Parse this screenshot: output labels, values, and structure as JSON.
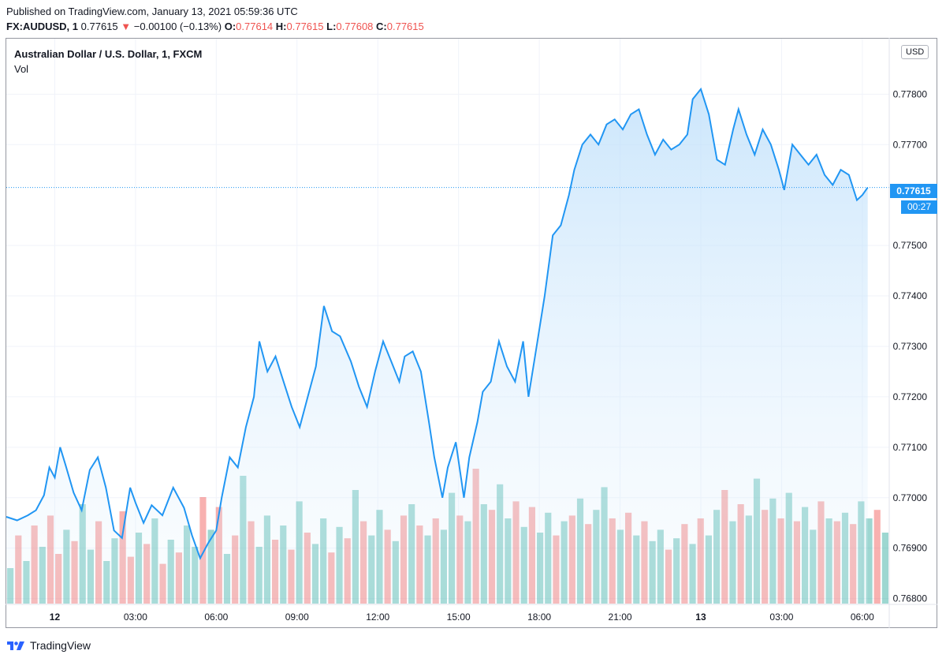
{
  "header": {
    "published": "Published on TradingView.com, January 13, 2021 05:59:36 UTC",
    "symbol": "FX:AUDUSD, 1",
    "last": "0.77615",
    "change_arrow": "▼",
    "change": "−0.00100 (−0.13%)",
    "open_label": "O:",
    "open": "0.77614",
    "high_label": "H:",
    "high": "0.77615",
    "low_label": "L:",
    "low": "0.77608",
    "close_label": "C:",
    "close": "0.77615"
  },
  "legend": {
    "title": "Australian Dollar / U.S. Dollar, 1, FXCM",
    "volume": "Vol"
  },
  "scale": {
    "currency_button": "USD",
    "price_tag": "0.77615",
    "time_tag": "00:27"
  },
  "footer": {
    "brand": "TradingView",
    "logo_icon": "tradingview-logo-icon"
  },
  "colors": {
    "line": "#2196f3",
    "area_top": "#bbdefb",
    "up_volume": "#26a69a",
    "down_volume": "#ef5350",
    "down_change": "#ef5350"
  },
  "chart_data": {
    "type": "area",
    "title": "Australian Dollar / U.S. Dollar, 1, FXCM",
    "series_name": "FX:AUDUSD",
    "xlabel": "",
    "ylabel": "",
    "x_ticks": [
      "12",
      "03:00",
      "06:00",
      "09:00",
      "12:00",
      "15:00",
      "18:00",
      "21:00",
      "13",
      "03:00",
      "06:00"
    ],
    "x_tick_hours": [
      0,
      3,
      6,
      9,
      12,
      15,
      18,
      21,
      24,
      27,
      30
    ],
    "y_ticks": [
      "0.77800",
      "0.77700",
      "0.77500",
      "0.77400",
      "0.77300",
      "0.77200",
      "0.77100",
      "0.77000",
      "0.76900",
      "0.76800"
    ],
    "y_tick_values": [
      0.778,
      0.777,
      0.775,
      0.774,
      0.773,
      0.772,
      0.771,
      0.77,
      0.769,
      0.768
    ],
    "ylim": [
      0.7679,
      0.7791
    ],
    "xlim_hours": [
      -1.8,
      31.0
    ],
    "x_unit": "hours since 2021-01-12 00:00 UTC",
    "points": [
      [
        -1.8,
        0.76962
      ],
      [
        -1.4,
        0.76955
      ],
      [
        -1.0,
        0.76965
      ],
      [
        -0.7,
        0.76975
      ],
      [
        -0.4,
        0.77005
      ],
      [
        -0.2,
        0.7706
      ],
      [
        0.0,
        0.7704
      ],
      [
        0.2,
        0.771
      ],
      [
        0.4,
        0.77065
      ],
      [
        0.7,
        0.7701
      ],
      [
        1.0,
        0.76975
      ],
      [
        1.3,
        0.77055
      ],
      [
        1.6,
        0.7708
      ],
      [
        1.9,
        0.7702
      ],
      [
        2.2,
        0.76935
      ],
      [
        2.5,
        0.7692
      ],
      [
        2.8,
        0.7702
      ],
      [
        3.0,
        0.7699
      ],
      [
        3.3,
        0.7695
      ],
      [
        3.6,
        0.76985
      ],
      [
        4.0,
        0.76965
      ],
      [
        4.4,
        0.7702
      ],
      [
        4.8,
        0.7698
      ],
      [
        5.1,
        0.76925
      ],
      [
        5.4,
        0.7688
      ],
      [
        5.7,
        0.7691
      ],
      [
        6.0,
        0.76935
      ],
      [
        6.2,
        0.77
      ],
      [
        6.5,
        0.7708
      ],
      [
        6.8,
        0.7706
      ],
      [
        7.1,
        0.7714
      ],
      [
        7.4,
        0.772
      ],
      [
        7.6,
        0.7731
      ],
      [
        7.9,
        0.7725
      ],
      [
        8.2,
        0.7728
      ],
      [
        8.5,
        0.7723
      ],
      [
        8.8,
        0.7718
      ],
      [
        9.1,
        0.7714
      ],
      [
        9.4,
        0.772
      ],
      [
        9.7,
        0.7726
      ],
      [
        10.0,
        0.7738
      ],
      [
        10.3,
        0.7733
      ],
      [
        10.6,
        0.7732
      ],
      [
        11.0,
        0.7727
      ],
      [
        11.3,
        0.7722
      ],
      [
        11.6,
        0.7718
      ],
      [
        11.9,
        0.7725
      ],
      [
        12.2,
        0.7731
      ],
      [
        12.5,
        0.7727
      ],
      [
        12.8,
        0.7723
      ],
      [
        13.0,
        0.7728
      ],
      [
        13.3,
        0.7729
      ],
      [
        13.6,
        0.7725
      ],
      [
        13.9,
        0.7715
      ],
      [
        14.1,
        0.7708
      ],
      [
        14.4,
        0.77
      ],
      [
        14.6,
        0.7706
      ],
      [
        14.9,
        0.7711
      ],
      [
        15.2,
        0.77
      ],
      [
        15.4,
        0.7708
      ],
      [
        15.7,
        0.7715
      ],
      [
        15.9,
        0.7721
      ],
      [
        16.2,
        0.7723
      ],
      [
        16.5,
        0.7731
      ],
      [
        16.8,
        0.7726
      ],
      [
        17.1,
        0.7723
      ],
      [
        17.4,
        0.7731
      ],
      [
        17.6,
        0.772
      ],
      [
        17.9,
        0.773
      ],
      [
        18.2,
        0.774
      ],
      [
        18.5,
        0.7752
      ],
      [
        18.8,
        0.7754
      ],
      [
        19.1,
        0.776
      ],
      [
        19.3,
        0.7765
      ],
      [
        19.6,
        0.777
      ],
      [
        19.9,
        0.7772
      ],
      [
        20.2,
        0.777
      ],
      [
        20.5,
        0.7774
      ],
      [
        20.8,
        0.7775
      ],
      [
        21.1,
        0.7773
      ],
      [
        21.4,
        0.7776
      ],
      [
        21.7,
        0.7777
      ],
      [
        22.0,
        0.7772
      ],
      [
        22.3,
        0.7768
      ],
      [
        22.6,
        0.7771
      ],
      [
        22.9,
        0.7769
      ],
      [
        23.2,
        0.777
      ],
      [
        23.5,
        0.7772
      ],
      [
        23.7,
        0.7779
      ],
      [
        24.0,
        0.7781
      ],
      [
        24.3,
        0.7776
      ],
      [
        24.6,
        0.7767
      ],
      [
        24.9,
        0.7766
      ],
      [
        25.2,
        0.7773
      ],
      [
        25.4,
        0.7777
      ],
      [
        25.7,
        0.7772
      ],
      [
        26.0,
        0.7768
      ],
      [
        26.3,
        0.7773
      ],
      [
        26.6,
        0.777
      ],
      [
        26.9,
        0.7765
      ],
      [
        27.1,
        0.7761
      ],
      [
        27.4,
        0.777
      ],
      [
        27.7,
        0.7768
      ],
      [
        28.0,
        0.7766
      ],
      [
        28.3,
        0.7768
      ],
      [
        28.6,
        0.7764
      ],
      [
        28.9,
        0.7762
      ],
      [
        29.2,
        0.7765
      ],
      [
        29.5,
        0.7764
      ],
      [
        29.8,
        0.7759
      ],
      [
        30.0,
        0.776
      ],
      [
        30.2,
        0.77615
      ]
    ],
    "last_price": 0.77615,
    "volume": {
      "shown_in_pane": true,
      "values_as_fraction_of_pane": [
        0.25,
        0.48,
        0.3,
        0.55,
        0.4,
        0.62,
        0.35,
        0.52,
        0.44,
        0.7,
        0.38,
        0.58,
        0.3,
        0.46,
        0.65,
        0.33,
        0.5,
        0.42,
        0.6,
        0.28,
        0.45,
        0.36,
        0.55,
        0.4,
        0.75,
        0.52,
        0.68,
        0.35,
        0.48,
        0.9,
        0.58,
        0.4,
        0.62,
        0.45,
        0.55,
        0.38,
        0.72,
        0.5,
        0.42,
        0.6,
        0.36,
        0.54,
        0.46,
        0.8,
        0.58,
        0.48,
        0.66,
        0.52,
        0.44,
        0.62,
        0.7,
        0.55,
        0.48,
        0.6,
        0.52,
        0.78,
        0.62,
        0.58,
        0.95,
        0.7,
        0.66,
        0.84,
        0.6,
        0.72,
        0.54,
        0.68,
        0.5,
        0.64,
        0.48,
        0.58,
        0.62,
        0.74,
        0.56,
        0.66,
        0.82,
        0.6,
        0.52,
        0.64,
        0.48,
        0.58,
        0.44,
        0.52,
        0.38,
        0.46,
        0.56,
        0.42,
        0.6,
        0.48,
        0.66,
        0.8,
        0.58,
        0.7,
        0.62,
        0.88,
        0.66,
        0.74,
        0.6,
        0.78,
        0.58,
        0.68,
        0.52,
        0.72,
        0.6,
        0.58,
        0.64,
        0.56,
        0.72,
        0.6,
        0.66,
        0.5
      ],
      "direction": [
        "up",
        "down",
        "up",
        "down",
        "up",
        "down",
        "down",
        "up",
        "down",
        "up",
        "up",
        "down",
        "up",
        "up",
        "down",
        "down",
        "up",
        "down",
        "up",
        "down",
        "up",
        "down",
        "up",
        "up",
        "down",
        "up",
        "down",
        "up",
        "down",
        "up",
        "down",
        "up",
        "up",
        "down",
        "up",
        "down",
        "up",
        "down",
        "up",
        "up",
        "down",
        "up",
        "down",
        "up",
        "down",
        "up",
        "up",
        "down",
        "up",
        "down",
        "up",
        "down",
        "up",
        "down",
        "up",
        "up",
        "down",
        "up",
        "down",
        "up",
        "down",
        "up",
        "up",
        "down",
        "up",
        "down",
        "up",
        "up",
        "down",
        "up",
        "down",
        "up",
        "down",
        "up",
        "up",
        "down",
        "up",
        "down",
        "up",
        "down",
        "up",
        "up",
        "down",
        "up",
        "down",
        "up",
        "down",
        "up",
        "up",
        "down",
        "up",
        "down",
        "up",
        "up",
        "down",
        "up",
        "down",
        "up",
        "down",
        "up",
        "up",
        "down",
        "up",
        "down",
        "up",
        "down",
        "up",
        "up",
        "down",
        "up"
      ]
    }
  }
}
